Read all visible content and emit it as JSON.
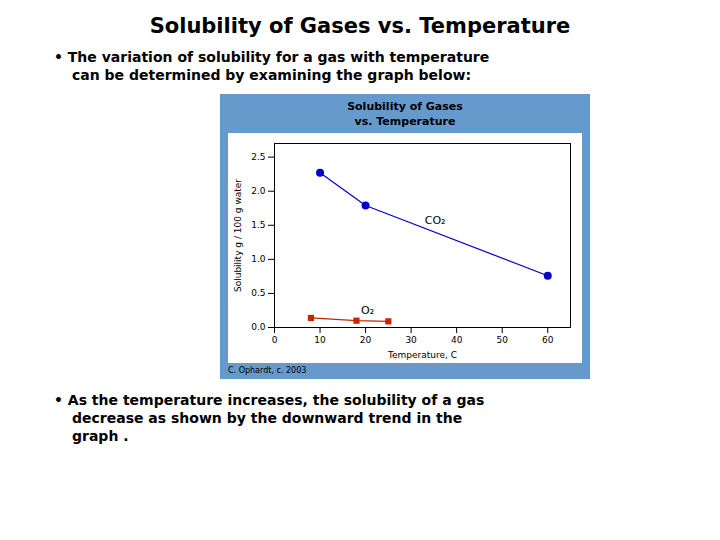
{
  "chart_data": {
    "type": "line",
    "title": "Solubility of Gases vs. Temperature",
    "subtitle": "Solubility of Gases\nvs. Temperature",
    "bullets": [
      "• The variation of solubility for a gas with temperature\ncan be determined by examining the graph below:",
      "• As the temperature increases, the solubility of a gas\ndecrease as shown by the downward trend in the\ngraph ."
    ],
    "caption": "C. Ophardt, c. 2003",
    "xlabel": "Temperature, C",
    "ylabel": "Solubility g / 100 g water",
    "series": [
      {
        "x": [
          10,
          20,
          60
        ],
        "values": [
          2.27,
          1.79,
          0.76
        ],
        "color": "#0000cc",
        "marker": "circle"
      },
      {
        "x": [
          8,
          18,
          25
        ],
        "values": [
          0.14,
          0.1,
          0.09
        ],
        "color": "#cc2200",
        "marker": "square"
      }
    ],
    "annotations": [
      {
        "text": "CO₂",
        "x": 33,
        "y": 1.52
      },
      {
        "text": "O₂",
        "x": 19,
        "y": 0.2
      }
    ],
    "xlim": [
      0,
      65
    ],
    "ylim": [
      0,
      2.7
    ],
    "xticks": [
      0,
      10,
      20,
      30,
      40,
      50,
      60
    ],
    "yticks": [
      {
        "value": 0,
        "label": "0.0"
      },
      0.5,
      {
        "value": 1,
        "label": "1.0"
      },
      1.5,
      {
        "value": 2,
        "label": "2.0"
      },
      2.5
    ],
    "grid": false
  }
}
